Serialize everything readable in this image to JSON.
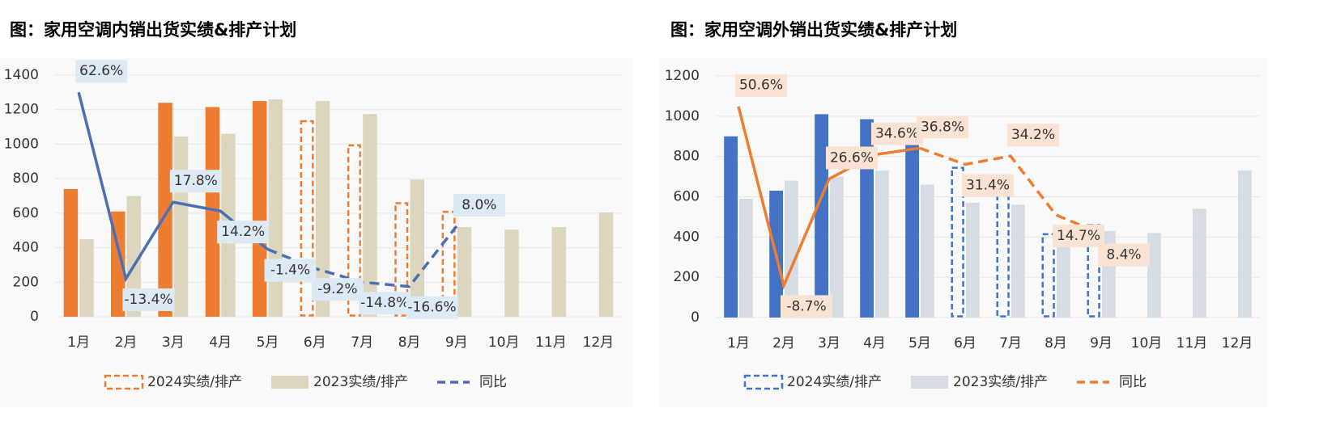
{
  "chart_data": [
    {
      "type": "bar",
      "title": "图：家用空调内销出货实绩&排产计划",
      "categories": [
        "1月",
        "2月",
        "3月",
        "4月",
        "5月",
        "6月",
        "7月",
        "8月",
        "9月",
        "10月",
        "11月",
        "12月"
      ],
      "ylim": [
        0,
        1400
      ],
      "yticks": [
        0,
        200,
        400,
        600,
        800,
        1000,
        1200,
        1400
      ],
      "grid": true,
      "y2lim": [
        -28.9,
        69.6
      ],
      "dashed_from": "6月",
      "line_dashed_from": "5月",
      "series": [
        {
          "name": "2024实绩/排产",
          "color": "#ed7d31",
          "values": [
            740,
            610,
            1240,
            1215,
            1250,
            1140,
            1000,
            665,
            615,
            null,
            null,
            null
          ]
        },
        {
          "name": "2023实绩/排产",
          "color": "#ddd6bf",
          "values": [
            450,
            700,
            1045,
            1060,
            1260,
            1250,
            1175,
            795,
            520,
            505,
            520,
            605
          ]
        },
        {
          "name": "同比",
          "type": "line",
          "axis": "y2",
          "color": "#4a6fb5",
          "label_bg": "#dde9f5",
          "values": [
            62.6,
            -13.4,
            17.8,
            14.2,
            -1.4,
            -9.2,
            -14.8,
            -16.6,
            8.0,
            null,
            null,
            null
          ],
          "value_labels": [
            "62.6%",
            "-13.4%",
            "17.8%",
            "14.2%",
            "-1.4%",
            "-9.2%",
            "-14.8%",
            "-16.6%",
            "8.0%",
            null,
            null,
            null
          ]
        }
      ]
    },
    {
      "type": "bar",
      "title": "图：家用空调外销出货实绩&排产计划",
      "categories": [
        "1月",
        "2月",
        "3月",
        "4月",
        "5月",
        "6月",
        "7月",
        "8月",
        "9月",
        "10月",
        "11月",
        "12月"
      ],
      "ylim": [
        0,
        1200
      ],
      "yticks": [
        0,
        200,
        400,
        600,
        800,
        1000,
        1200
      ],
      "grid": true,
      "y2lim": [
        -19.3,
        60.7
      ],
      "dashed_from": "6月",
      "line_dashed_from": "5月",
      "series": [
        {
          "name": "2024实绩/排产",
          "color": "#4472c4",
          "values": [
            900,
            630,
            1010,
            985,
            875,
            750,
            650,
            420,
            465,
            null,
            null,
            null
          ]
        },
        {
          "name": "2023实绩/排产",
          "color": "#d6dbe4",
          "values": [
            590,
            680,
            700,
            730,
            660,
            570,
            560,
            430,
            430,
            420,
            540,
            730
          ]
        },
        {
          "name": "同比",
          "type": "line",
          "axis": "y2",
          "color": "#ed7d31",
          "label_bg": "#fbe3d3",
          "values": [
            50.6,
            -8.7,
            26.6,
            34.6,
            36.8,
            31.4,
            34.2,
            14.7,
            8.4,
            null,
            null,
            null
          ],
          "value_labels": [
            "50.6%",
            "-8.7%",
            "26.6%",
            "34.6%",
            "36.8%",
            "31.4%",
            "34.2%",
            "14.7%",
            "8.4%",
            null,
            null,
            null
          ]
        }
      ]
    }
  ]
}
